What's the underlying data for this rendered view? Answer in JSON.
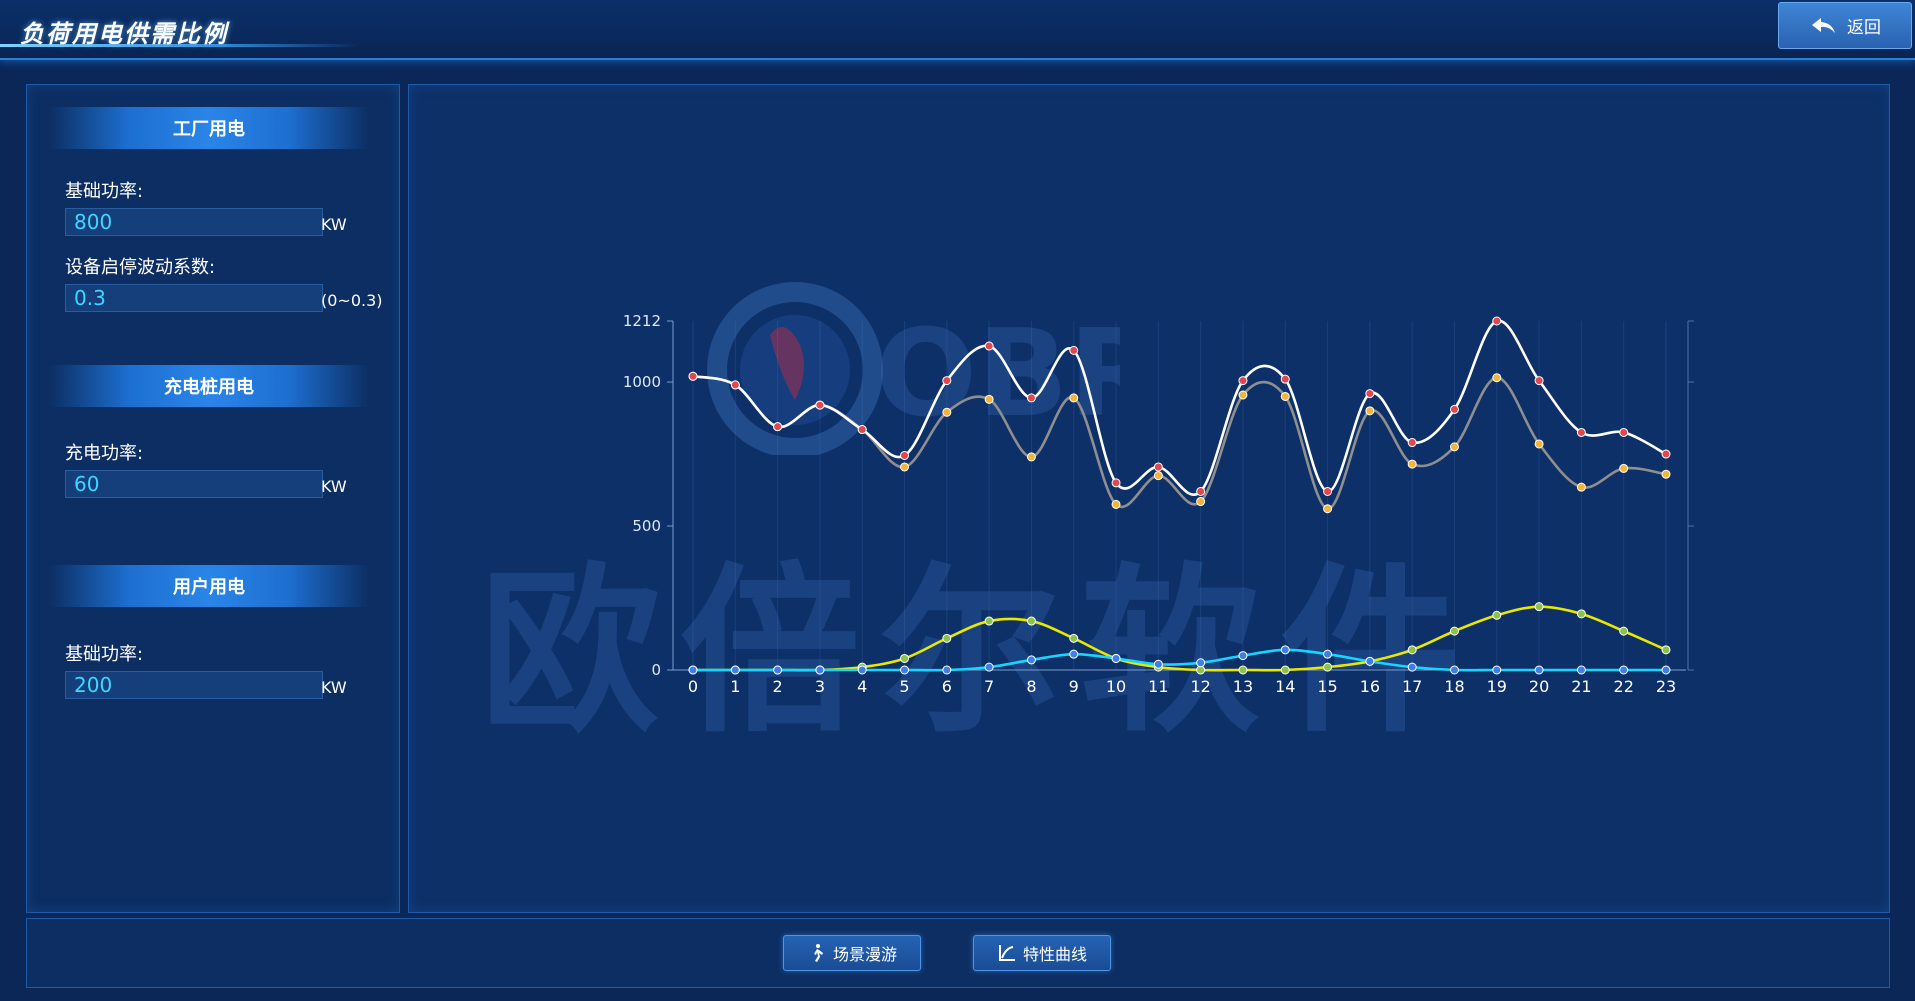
{
  "header": {
    "title": "负荷用电供需比例",
    "back_label": "返回"
  },
  "sections": {
    "factory": {
      "title": "工厂用电",
      "base_power_label": "基础功率:",
      "base_power_value": "800",
      "base_power_unit": "KW",
      "fluct_label": "设备启停波动系数:",
      "fluct_value": "0.3",
      "fluct_range": "(0~0.3)"
    },
    "charging": {
      "title": "充电桩用电",
      "power_label": "充电功率:",
      "power_value": "60",
      "power_unit": "KW"
    },
    "household": {
      "title": "用户用电",
      "base_power_label": "基础功率:",
      "base_power_value": "200",
      "base_power_unit": "KW"
    }
  },
  "watermark": {
    "text": "欧倍尔软件",
    "logo_text": "OBR"
  },
  "bottom": {
    "scene_label": "场景漫游",
    "curve_label": "特性曲线"
  },
  "colors": {
    "white_series": "#ffffff",
    "gray_series": "#8f8f8f",
    "yellow_series": "#e8e800",
    "cyan_series": "#19d4ff",
    "red_marker": "#e0474f",
    "orange_marker": "#f2b43a",
    "green_marker": "#8ac24a",
    "blue_marker": "#3d7ee8"
  },
  "chart_data": {
    "type": "line",
    "x": [
      0,
      1,
      2,
      3,
      4,
      5,
      6,
      7,
      8,
      9,
      10,
      11,
      12,
      13,
      14,
      15,
      16,
      17,
      18,
      19,
      20,
      21,
      22,
      23
    ],
    "y_ticks": [
      0,
      500,
      1000,
      1212
    ],
    "ylim": [
      0,
      1212
    ],
    "grid": true,
    "series": [
      {
        "color": "white_series",
        "marker": "red_marker",
        "values": [
          1020,
          990,
          845,
          920,
          835,
          745,
          1005,
          1125,
          945,
          1110,
          650,
          705,
          620,
          1005,
          1010,
          620,
          960,
          790,
          905,
          1212,
          1005,
          825,
          825,
          750
        ]
      },
      {
        "color": "gray_series",
        "marker": "orange_marker",
        "values": [
          1020,
          990,
          845,
          920,
          835,
          705,
          895,
          940,
          740,
          945,
          575,
          675,
          585,
          955,
          950,
          560,
          900,
          715,
          775,
          1015,
          785,
          635,
          700,
          680
        ]
      },
      {
        "color": "yellow_series",
        "marker": "green_marker",
        "values": [
          0,
          0,
          0,
          0,
          10,
          40,
          110,
          170,
          170,
          110,
          40,
          10,
          0,
          0,
          0,
          10,
          30,
          70,
          135,
          190,
          220,
          195,
          135,
          70
        ]
      },
      {
        "color": "cyan_series",
        "marker": "blue_marker",
        "values": [
          0,
          0,
          0,
          0,
          0,
          0,
          0,
          10,
          35,
          55,
          40,
          20,
          25,
          50,
          70,
          55,
          30,
          10,
          0,
          0,
          0,
          0,
          0,
          0
        ]
      }
    ]
  }
}
